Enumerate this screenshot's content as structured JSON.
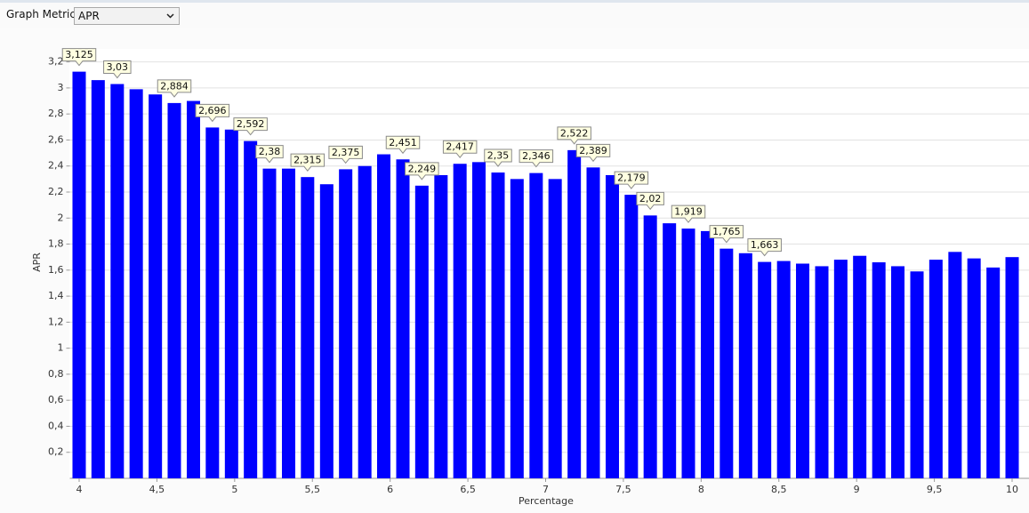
{
  "controls": {
    "label": "Graph Metric",
    "selected": "APR"
  },
  "chart_data": {
    "type": "bar",
    "xlabel": "Percentage",
    "ylabel": "APR",
    "color": "#0000ff",
    "grid": true,
    "x": [
      4,
      4.122,
      4.245,
      4.367,
      4.49,
      4.612,
      4.735,
      4.857,
      4.98,
      5.102,
      5.224,
      5.347,
      5.469,
      5.592,
      5.714,
      5.837,
      5.959,
      6.082,
      6.204,
      6.327,
      6.449,
      6.571,
      6.694,
      6.816,
      6.939,
      7.061,
      7.184,
      7.306,
      7.429,
      7.551,
      7.673,
      7.796,
      7.918,
      8.041,
      8.163,
      8.286,
      8.408,
      8.531,
      8.653,
      8.776,
      8.898,
      9.02,
      9.143,
      9.265,
      9.388,
      9.51,
      9.633,
      9.755,
      9.878,
      10
    ],
    "values": [
      3.125,
      3.06,
      3.03,
      2.99,
      2.95,
      2.884,
      2.9,
      2.696,
      2.68,
      2.592,
      2.38,
      2.38,
      2.315,
      2.26,
      2.375,
      2.4,
      2.49,
      2.451,
      2.249,
      2.33,
      2.417,
      2.43,
      2.35,
      2.3,
      2.346,
      2.3,
      2.522,
      2.389,
      2.33,
      2.179,
      2.02,
      1.96,
      1.919,
      1.9,
      1.765,
      1.73,
      1.663,
      1.67,
      1.65,
      1.63,
      1.68,
      1.71,
      1.66,
      1.63,
      1.59,
      1.68,
      1.74,
      1.69,
      1.62,
      1.7
    ],
    "value_labels": [
      "3,125",
      null,
      "3,03",
      null,
      null,
      "2,884",
      null,
      "2,696",
      null,
      "2,592",
      "2,38",
      null,
      "2,315",
      null,
      "2,375",
      null,
      null,
      "2,451",
      "2,249",
      null,
      "2,417",
      null,
      "2,35",
      null,
      "2,346",
      null,
      "2,522",
      "2,389",
      null,
      "2,179",
      "2,02",
      null,
      "1,919",
      null,
      "1,765",
      null,
      "1,663",
      null,
      null,
      null,
      null,
      null,
      null,
      null,
      null,
      null,
      null,
      null,
      null,
      null
    ],
    "xlim": [
      3.94,
      10.08
    ],
    "xticks": [
      4,
      {
        "value": 4.5,
        "label": "4,5"
      },
      5,
      {
        "value": 5.5,
        "label": "5,5"
      },
      6,
      {
        "value": 6.5,
        "label": "6,5"
      },
      7,
      {
        "value": 7.5,
        "label": "7,5"
      },
      8,
      {
        "value": 8.5,
        "label": "8,5"
      },
      9,
      {
        "value": 9.5,
        "label": "9,5"
      },
      10
    ],
    "ylim": [
      0,
      3.3
    ],
    "yticks": [
      {
        "value": 0.2,
        "label": "0,2"
      },
      {
        "value": 0.4,
        "label": "0,4"
      },
      {
        "value": 0.6,
        "label": "0,6"
      },
      {
        "value": 0.8,
        "label": "0,8"
      },
      1,
      {
        "value": 1.2,
        "label": "1,2"
      },
      {
        "value": 1.4,
        "label": "1,4"
      },
      {
        "value": 1.6,
        "label": "1,6"
      },
      {
        "value": 1.8,
        "label": "1,8"
      },
      2,
      {
        "value": 2.2,
        "label": "2,2"
      },
      {
        "value": 2.4,
        "label": "2,4"
      },
      {
        "value": 2.6,
        "label": "2,6"
      },
      {
        "value": 2.8,
        "label": "2,8"
      },
      3,
      {
        "value": 3.2,
        "label": "3,2"
      }
    ]
  }
}
